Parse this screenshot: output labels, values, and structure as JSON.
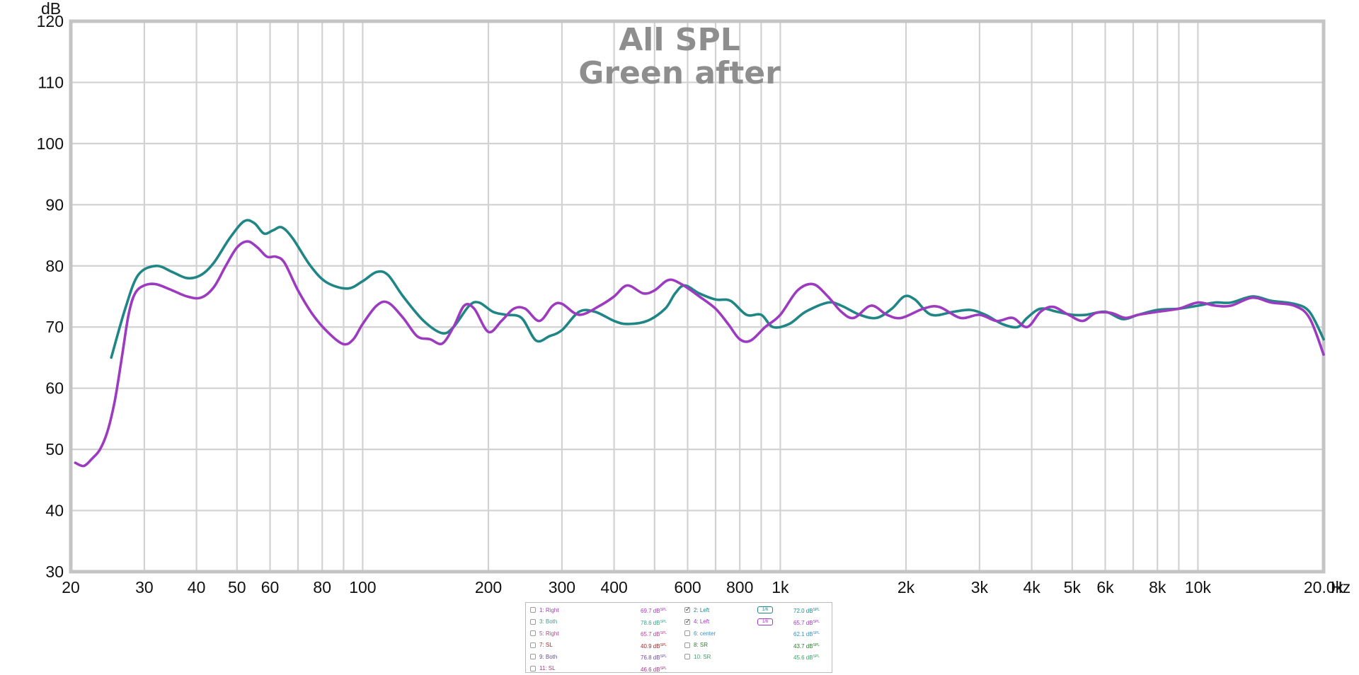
{
  "chart_data": {
    "type": "line",
    "title": "All SPL",
    "subtitle": "Green after",
    "ylabel": "dB",
    "xlabel": "Hz",
    "x_scale": "log",
    "xlim": [
      20,
      20000
    ],
    "ylim": [
      30,
      120
    ],
    "grid": true,
    "y_ticks": [
      30,
      40,
      50,
      60,
      70,
      80,
      90,
      100,
      110,
      120
    ],
    "x_ticks": [
      {
        "value": 20,
        "label": "20"
      },
      {
        "value": 30,
        "label": "30"
      },
      {
        "value": 40,
        "label": "40"
      },
      {
        "value": 50,
        "label": "50"
      },
      {
        "value": 60,
        "label": "60"
      },
      {
        "value": 80,
        "label": "80"
      },
      {
        "value": 100,
        "label": "100"
      },
      {
        "value": 200,
        "label": "200"
      },
      {
        "value": 300,
        "label": "300"
      },
      {
        "value": 400,
        "label": "400"
      },
      {
        "value": 600,
        "label": "600"
      },
      {
        "value": 800,
        "label": "800"
      },
      {
        "value": 1000,
        "label": "1k"
      },
      {
        "value": 2000,
        "label": "2k"
      },
      {
        "value": 3000,
        "label": "3k"
      },
      {
        "value": 4000,
        "label": "4k"
      },
      {
        "value": 5000,
        "label": "5k"
      },
      {
        "value": 6000,
        "label": "6k"
      },
      {
        "value": 8000,
        "label": "8k"
      },
      {
        "value": 10000,
        "label": "10k"
      },
      {
        "value": 20000,
        "label": "20.0k"
      }
    ],
    "minor_gridlines": [
      20,
      30,
      40,
      50,
      60,
      70,
      80,
      90,
      100,
      200,
      300,
      400,
      500,
      600,
      700,
      800,
      900,
      1000,
      2000,
      3000,
      4000,
      5000,
      6000,
      7000,
      8000,
      9000,
      10000,
      20000
    ],
    "series": [
      {
        "name": "2: Left",
        "color": "#1f8585",
        "points": [
          [
            25,
            65
          ],
          [
            27,
            73
          ],
          [
            29,
            78.5
          ],
          [
            32,
            80
          ],
          [
            35,
            79
          ],
          [
            38,
            78
          ],
          [
            41,
            78.5
          ],
          [
            44,
            80.5
          ],
          [
            48,
            84.5
          ],
          [
            52,
            87.3
          ],
          [
            55,
            87
          ],
          [
            58,
            85.3
          ],
          [
            61,
            85.8
          ],
          [
            64,
            86.3
          ],
          [
            68,
            84.5
          ],
          [
            75,
            80
          ],
          [
            82,
            77.3
          ],
          [
            92,
            76.3
          ],
          [
            100,
            77.5
          ],
          [
            108,
            79
          ],
          [
            115,
            78.5
          ],
          [
            125,
            75
          ],
          [
            140,
            71
          ],
          [
            155,
            69
          ],
          [
            165,
            70
          ],
          [
            180,
            73.5
          ],
          [
            190,
            74
          ],
          [
            205,
            72.5
          ],
          [
            220,
            72
          ],
          [
            240,
            71.5
          ],
          [
            260,
            67.8
          ],
          [
            280,
            68.5
          ],
          [
            300,
            69.5
          ],
          [
            330,
            72.5
          ],
          [
            360,
            72.5
          ],
          [
            400,
            71
          ],
          [
            430,
            70.5
          ],
          [
            480,
            71
          ],
          [
            530,
            73
          ],
          [
            560,
            75.5
          ],
          [
            590,
            76.8
          ],
          [
            640,
            75.5
          ],
          [
            700,
            74.5
          ],
          [
            760,
            74.3
          ],
          [
            830,
            72
          ],
          [
            900,
            72
          ],
          [
            960,
            70
          ],
          [
            1050,
            70.5
          ],
          [
            1150,
            72.5
          ],
          [
            1300,
            74
          ],
          [
            1400,
            73.5
          ],
          [
            1550,
            72
          ],
          [
            1700,
            71.5
          ],
          [
            1850,
            73
          ],
          [
            1980,
            75
          ],
          [
            2100,
            74.5
          ],
          [
            2300,
            72
          ],
          [
            2600,
            72.5
          ],
          [
            2850,
            72.8
          ],
          [
            3100,
            72
          ],
          [
            3400,
            70.5
          ],
          [
            3700,
            70
          ],
          [
            3900,
            71.5
          ],
          [
            4200,
            73
          ],
          [
            4600,
            72.5
          ],
          [
            5000,
            72
          ],
          [
            5400,
            72
          ],
          [
            6000,
            72.5
          ],
          [
            6600,
            71.3
          ],
          [
            7200,
            72
          ],
          [
            8000,
            72.8
          ],
          [
            9000,
            73
          ],
          [
            10000,
            73.5
          ],
          [
            11000,
            74
          ],
          [
            12000,
            74
          ],
          [
            13500,
            75
          ],
          [
            15000,
            74.3
          ],
          [
            17000,
            73.8
          ],
          [
            18500,
            72.5
          ],
          [
            20000,
            68
          ]
        ]
      },
      {
        "name": "4: Left",
        "color": "#9c3bbf",
        "points": [
          [
            20.5,
            47.8
          ],
          [
            21.5,
            47.3
          ],
          [
            22.5,
            48.5
          ],
          [
            23.5,
            50
          ],
          [
            24.5,
            53
          ],
          [
            25.5,
            58
          ],
          [
            26.5,
            65
          ],
          [
            27.5,
            72
          ],
          [
            28.5,
            75.5
          ],
          [
            30,
            76.8
          ],
          [
            32,
            77
          ],
          [
            35,
            76
          ],
          [
            38,
            75
          ],
          [
            41,
            74.8
          ],
          [
            44,
            76.5
          ],
          [
            47,
            80
          ],
          [
            50,
            83
          ],
          [
            53,
            84
          ],
          [
            56,
            83
          ],
          [
            59,
            81.5
          ],
          [
            62,
            81.5
          ],
          [
            65,
            80.5
          ],
          [
            70,
            76
          ],
          [
            76,
            72
          ],
          [
            83,
            69
          ],
          [
            90,
            67.2
          ],
          [
            95,
            68
          ],
          [
            100,
            70.5
          ],
          [
            108,
            73.5
          ],
          [
            115,
            74
          ],
          [
            125,
            71.5
          ],
          [
            135,
            68.5
          ],
          [
            145,
            68
          ],
          [
            155,
            67.3
          ],
          [
            165,
            70
          ],
          [
            175,
            73.5
          ],
          [
            185,
            73
          ],
          [
            200,
            69.2
          ],
          [
            215,
            71
          ],
          [
            230,
            73
          ],
          [
            245,
            73
          ],
          [
            265,
            71
          ],
          [
            285,
            73.5
          ],
          [
            300,
            73.8
          ],
          [
            330,
            72
          ],
          [
            370,
            73.5
          ],
          [
            400,
            75
          ],
          [
            430,
            76.8
          ],
          [
            470,
            75.5
          ],
          [
            500,
            76
          ],
          [
            540,
            77.7
          ],
          [
            580,
            77
          ],
          [
            640,
            75
          ],
          [
            700,
            73
          ],
          [
            750,
            70.5
          ],
          [
            800,
            68
          ],
          [
            850,
            67.8
          ],
          [
            920,
            70
          ],
          [
            1000,
            72
          ],
          [
            1100,
            76
          ],
          [
            1200,
            77
          ],
          [
            1300,
            75
          ],
          [
            1400,
            72.5
          ],
          [
            1500,
            71.5
          ],
          [
            1650,
            73.5
          ],
          [
            1800,
            72
          ],
          [
            1950,
            71.5
          ],
          [
            2200,
            73
          ],
          [
            2400,
            73.3
          ],
          [
            2700,
            71.5
          ],
          [
            3000,
            72
          ],
          [
            3300,
            71
          ],
          [
            3600,
            71.5
          ],
          [
            3900,
            70
          ],
          [
            4200,
            72.5
          ],
          [
            4500,
            73.3
          ],
          [
            4900,
            72
          ],
          [
            5300,
            71
          ],
          [
            5700,
            72.3
          ],
          [
            6200,
            72.3
          ],
          [
            6700,
            71.5
          ],
          [
            7200,
            72
          ],
          [
            8000,
            72.5
          ],
          [
            9000,
            73
          ],
          [
            10000,
            74
          ],
          [
            11000,
            73.5
          ],
          [
            12000,
            73.5
          ],
          [
            13500,
            74.8
          ],
          [
            15000,
            74
          ],
          [
            17000,
            73.5
          ],
          [
            18500,
            71.5
          ],
          [
            20000,
            65.5
          ]
        ]
      }
    ]
  },
  "legend": {
    "rows": [
      {
        "left": {
          "label": "1: Right",
          "value": "69.7 dB",
          "checked": false,
          "color": "#a23bbd"
        },
        "right": {
          "label": "2: Left",
          "value": "72.0 dB",
          "checked": true,
          "color": "#1f8585",
          "smoothing": "1/6"
        }
      },
      {
        "left": {
          "label": "3: Both",
          "value": "78.6 dB",
          "checked": false,
          "color": "#3aa08a"
        },
        "right": {
          "label": "4: Left",
          "value": "65.7 dB",
          "checked": true,
          "color": "#9c3bbf",
          "smoothing": "1/6"
        }
      },
      {
        "left": {
          "label": "5: Right",
          "value": "65.7 dB",
          "checked": false,
          "color": "#b0478f"
        },
        "right": {
          "label": "6: center",
          "value": "62.1 dB",
          "checked": false,
          "color": "#3b8fbf"
        }
      },
      {
        "left": {
          "label": "7: SL",
          "value": "40.9 dB",
          "checked": false,
          "color": "#a02a2a"
        },
        "right": {
          "label": "8: SR",
          "value": "43.7 dB",
          "checked": false,
          "color": "#2a7a2a"
        }
      },
      {
        "left": {
          "label": "9: Both",
          "value": "76.8 dB",
          "checked": false,
          "color": "#6b4aa0"
        },
        "right": {
          "label": "10: SR",
          "value": "45.6 dB",
          "checked": false,
          "color": "#3aa06a"
        }
      },
      {
        "left": {
          "label": "11: SL",
          "value": "46.6 dB",
          "checked": false,
          "color": "#a03b7a"
        },
        "right": null
      }
    ],
    "unit_suffix": "SPL"
  }
}
